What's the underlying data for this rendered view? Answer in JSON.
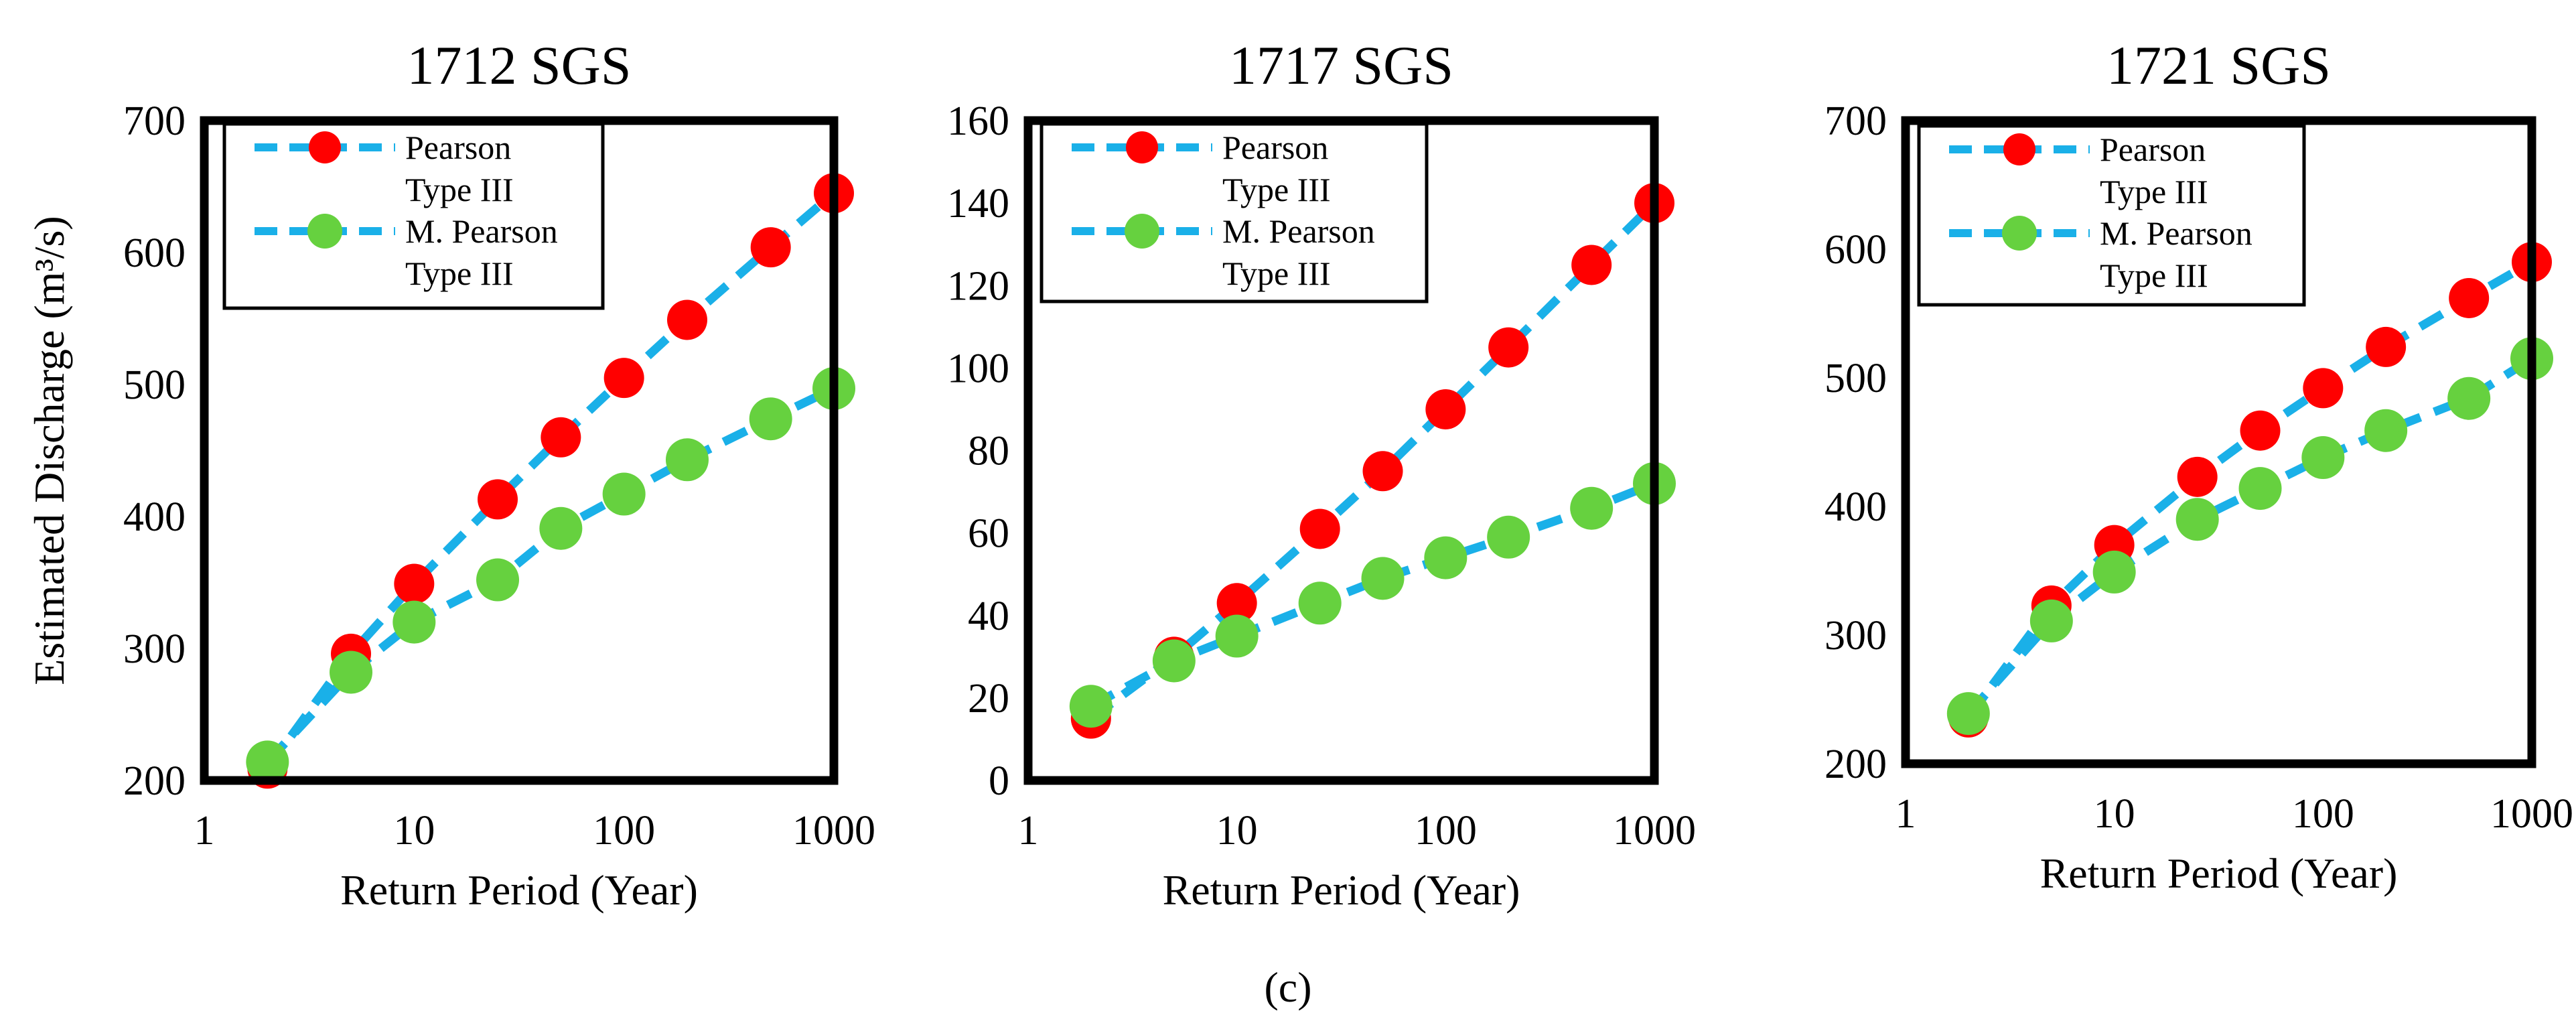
{
  "figure": {
    "caption": "(c)"
  },
  "chart_data": [
    {
      "type": "line",
      "title": "1712 SGS",
      "xlabel": "Return Period (Year)",
      "ylabel": "Estimated Discharge (m³/s)",
      "xscale": "log",
      "xlim": [
        1,
        1000
      ],
      "ylim": [
        200,
        700
      ],
      "xticks": [
        1,
        10,
        100,
        1000
      ],
      "xtick_labels": [
        "1",
        "10",
        "100",
        "1000"
      ],
      "yticks": [
        200,
        300,
        400,
        500,
        600,
        700
      ],
      "ytick_labels": [
        "200",
        "300",
        "400",
        "500",
        "600",
        "700"
      ],
      "x": [
        2,
        5,
        10,
        25,
        50,
        100,
        200,
        500,
        1000
      ],
      "series": [
        {
          "name": "Pearson Type III",
          "legend_lines": [
            "Pearson",
            "Type III"
          ],
          "marker_color": "#ff0000",
          "line_color": "#1ab0e8",
          "values": [
            209,
            296,
            349,
            413,
            460,
            505,
            549,
            604,
            645
          ]
        },
        {
          "name": "M. Pearson Type III",
          "legend_lines": [
            "M. Pearson",
            "Type III"
          ],
          "marker_color": "#66d13f",
          "line_color": "#1ab0e8",
          "values": [
            214,
            282,
            320,
            352,
            391,
            417,
            443,
            474,
            497
          ]
        }
      ],
      "legend": "top-left"
    },
    {
      "type": "line",
      "title": "1717 SGS",
      "xlabel": "Return Period (Year)",
      "ylabel": "",
      "xscale": "log",
      "xlim": [
        1,
        1000
      ],
      "ylim": [
        0,
        160
      ],
      "xticks": [
        1,
        10,
        100,
        1000
      ],
      "xtick_labels": [
        "1",
        "10",
        "100",
        "1000"
      ],
      "yticks": [
        0,
        20,
        40,
        60,
        80,
        100,
        120,
        140,
        160
      ],
      "ytick_labels": [
        "0",
        "20",
        "40",
        "60",
        "80",
        "100",
        "120",
        "140",
        "160"
      ],
      "x": [
        2,
        5,
        10,
        25,
        50,
        100,
        200,
        500,
        1000
      ],
      "series": [
        {
          "name": "Pearson Type III",
          "legend_lines": [
            "Pearson",
            "Type III"
          ],
          "marker_color": "#ff0000",
          "line_color": "#1ab0e8",
          "values": [
            15,
            30,
            43,
            61,
            75,
            90,
            105,
            125,
            140
          ]
        },
        {
          "name": "M. Pearson Type III",
          "legend_lines": [
            "M. Pearson",
            "Type III"
          ],
          "marker_color": "#66d13f",
          "line_color": "#1ab0e8",
          "values": [
            18,
            29,
            35,
            43,
            49,
            54,
            59,
            66,
            72
          ]
        }
      ],
      "legend": "top-left"
    },
    {
      "type": "line",
      "title": "1721 SGS",
      "xlabel": "Return Period (Year)",
      "ylabel": "",
      "xscale": "log",
      "xlim": [
        1,
        1000
      ],
      "ylim": [
        200,
        700
      ],
      "xticks": [
        1,
        10,
        100,
        1000
      ],
      "xtick_labels": [
        "1",
        "10",
        "100",
        "1000"
      ],
      "yticks": [
        200,
        300,
        400,
        500,
        600,
        700
      ],
      "ytick_labels": [
        "200",
        "300",
        "400",
        "500",
        "600",
        "700"
      ],
      "x": [
        2,
        5,
        10,
        25,
        50,
        100,
        200,
        500,
        1000
      ],
      "series": [
        {
          "name": "Pearson Type III",
          "legend_lines": [
            "Pearson",
            "Type III"
          ],
          "marker_color": "#ff0000",
          "line_color": "#1ab0e8",
          "values": [
            236,
            323,
            370,
            423,
            459,
            492,
            524,
            562,
            590
          ]
        },
        {
          "name": "M. Pearson Type III",
          "legend_lines": [
            "M. Pearson",
            "Type III"
          ],
          "marker_color": "#66d13f",
          "line_color": "#1ab0e8",
          "values": [
            239,
            311,
            349,
            390,
            414,
            438,
            459,
            484,
            515
          ]
        }
      ],
      "legend": "top-left"
    }
  ]
}
